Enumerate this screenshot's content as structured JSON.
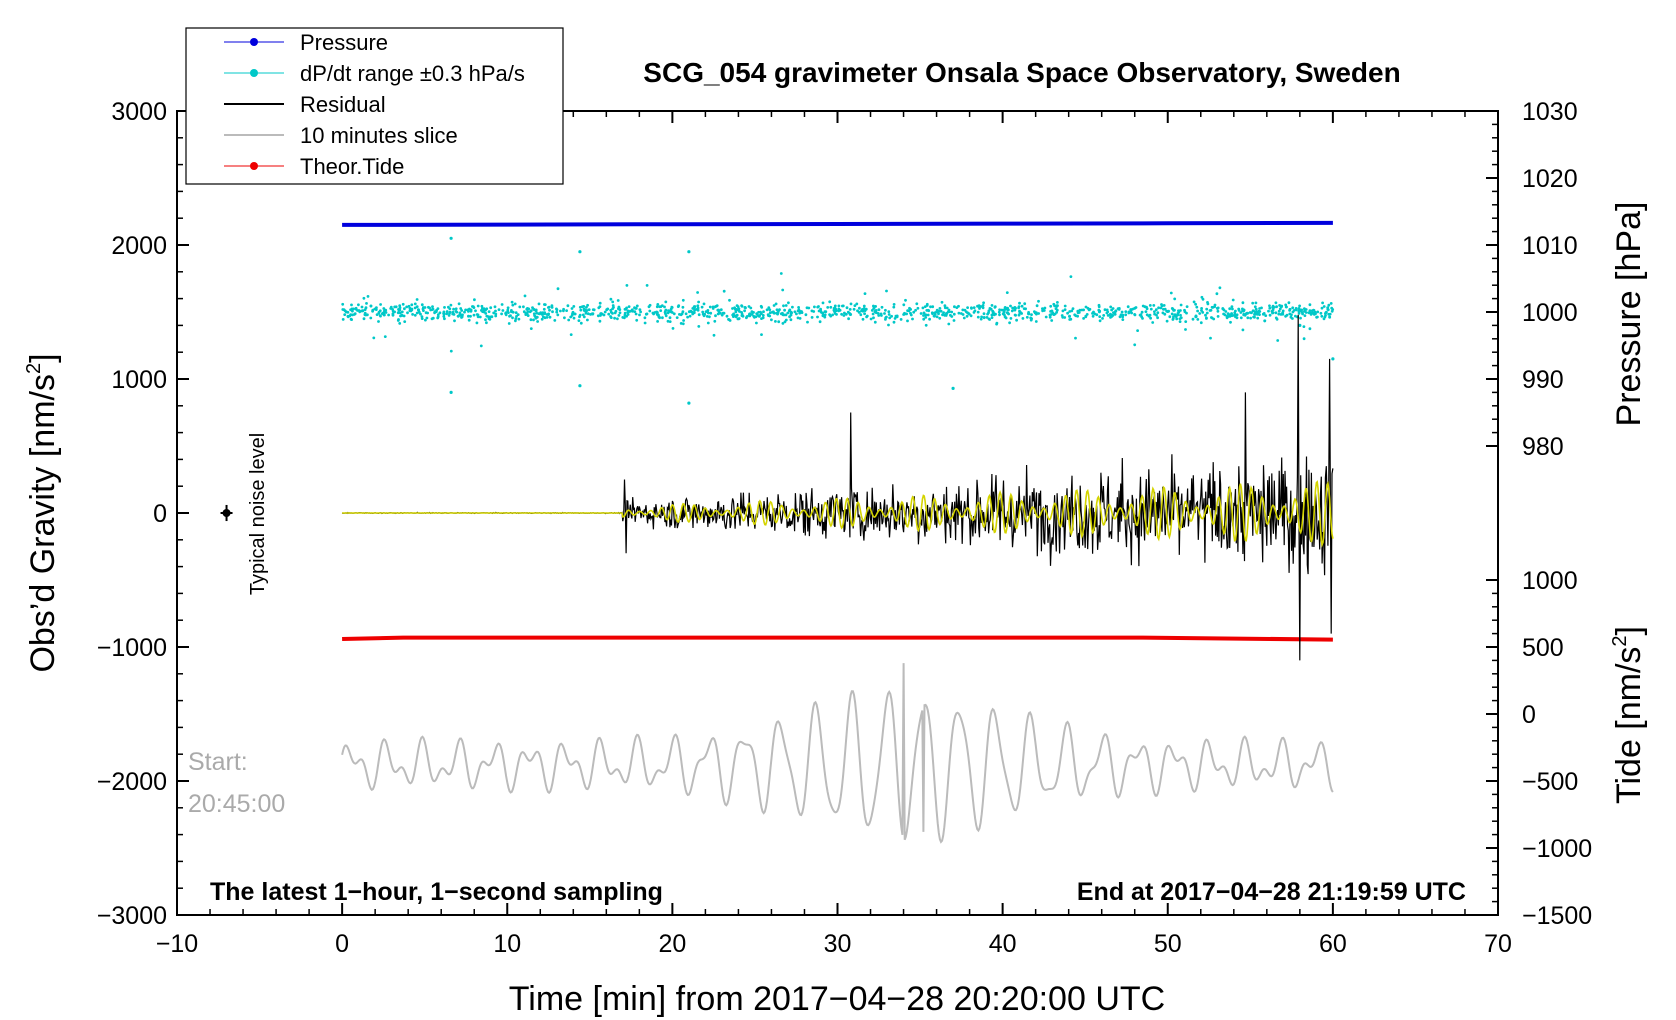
{
  "chart_data": {
    "type": "line",
    "title": "SCG_054 gravimeter Onsala Space Observatory, Sweden",
    "xlabel": "Time [min] from 2017−04−28 20:20:00 UTC",
    "ylabel_left": "Obs’d Gravity [nm/s",
    "ylabel_left_exp": "2",
    "ylabel_left_close": "]",
    "ylabel_right_pressure": "Pressure [hPa]",
    "ylabel_right_tide": "Tide [nm/s",
    "ylabel_right_tide_exp": "2",
    "ylabel_right_tide_close": "]",
    "xlim": [
      -10,
      70
    ],
    "ylim": [
      -3000,
      3000
    ],
    "x_ticks": [
      -10,
      0,
      10,
      20,
      30,
      40,
      50,
      60,
      70
    ],
    "x_tick_labels": [
      "−10",
      "0",
      "10",
      "20",
      "30",
      "40",
      "50",
      "60",
      "70"
    ],
    "y_ticks": [
      -3000,
      -2000,
      -1000,
      0,
      1000,
      2000,
      3000
    ],
    "y_tick_labels": [
      "−3000",
      "−2000",
      "−1000",
      "0",
      "1000",
      "2000",
      "3000"
    ],
    "pressure_axis": {
      "range_hpa": [
        980,
        1030
      ],
      "maps_to_gravity": [
        500,
        3000
      ],
      "ticks": [
        980,
        990,
        1000,
        1010,
        1020,
        1030
      ],
      "tick_labels": [
        "980",
        "990",
        "1000",
        "1010",
        "1020",
        "1030"
      ]
    },
    "tide_axis": {
      "range_nms2": [
        -1500,
        1000
      ],
      "maps_to_gravity": [
        -3000,
        -500
      ],
      "ticks": [
        -1500,
        -1000,
        -500,
        0,
        500,
        1000
      ],
      "tick_labels": [
        "−1500",
        "−1000",
        "−500",
        "0",
        "500",
        "1000"
      ]
    },
    "legend": {
      "placement": "top-left",
      "entries": [
        {
          "label": "Pressure",
          "color": "#0000dd",
          "marker": "dot"
        },
        {
          "label": "dP/dt range ±0.3 hPa/s",
          "color": "#00c8c8",
          "marker": "dot"
        },
        {
          "label": "Residual",
          "color": "#000000",
          "marker": "line"
        },
        {
          "label": "10 minutes slice",
          "color": "#bbbbbb",
          "marker": "line"
        },
        {
          "label": "Theor.Tide",
          "color": "#ee0000",
          "marker": "dot"
        }
      ]
    },
    "series": [
      {
        "name": "Pressure",
        "color": "#0000dd",
        "x": [
          0,
          10,
          20,
          30,
          40,
          50,
          60
        ],
        "y": [
          2150,
          2152,
          2155,
          2157,
          2160,
          2162,
          2165
        ]
      },
      {
        "name": "dP/dt range ±0.3 hPa/s",
        "color": "#00c8c8",
        "baseline": 1500,
        "typical_spread": 100,
        "outliers": [
          [
            6.6,
            2050
          ],
          [
            6.6,
            900
          ],
          [
            14.4,
            1950
          ],
          [
            14.4,
            950
          ],
          [
            21,
            1950
          ],
          [
            21,
            820
          ],
          [
            37,
            930
          ],
          [
            58,
            1400
          ],
          [
            60,
            1150
          ]
        ]
      },
      {
        "name": "Residual",
        "color": "#000000",
        "quiet_until_min": 17,
        "peaks": [
          [
            17.1,
            250
          ],
          [
            17.2,
            -300
          ],
          [
            30.8,
            750
          ],
          [
            54.7,
            900
          ],
          [
            57.9,
            1480
          ],
          [
            58.0,
            -1100
          ],
          [
            59.8,
            1150
          ],
          [
            59.9,
            -900
          ]
        ]
      },
      {
        "name": "Residual (filtered)",
        "color": "#d4d400"
      },
      {
        "name": "Theor.Tide",
        "color": "#ee0000",
        "x": [
          0,
          3.7,
          48.5,
          60
        ],
        "y": [
          -940,
          -930,
          -930,
          -945
        ]
      },
      {
        "name": "10 minutes slice",
        "color": "#bbbbbb",
        "center": -1880,
        "peak_max": -1120,
        "peak_min": -2380
      }
    ],
    "annotations": {
      "noise_label": "Typical noise level",
      "noise_marker": {
        "x": -7,
        "y": 0,
        "errorbar": 60
      },
      "start_label": "Start:",
      "start_time": "20:45:00",
      "bottom_left": "The latest 1−hour, 1−second sampling",
      "bottom_right": "End at 2017−04−28 21:19:59 UTC"
    }
  }
}
